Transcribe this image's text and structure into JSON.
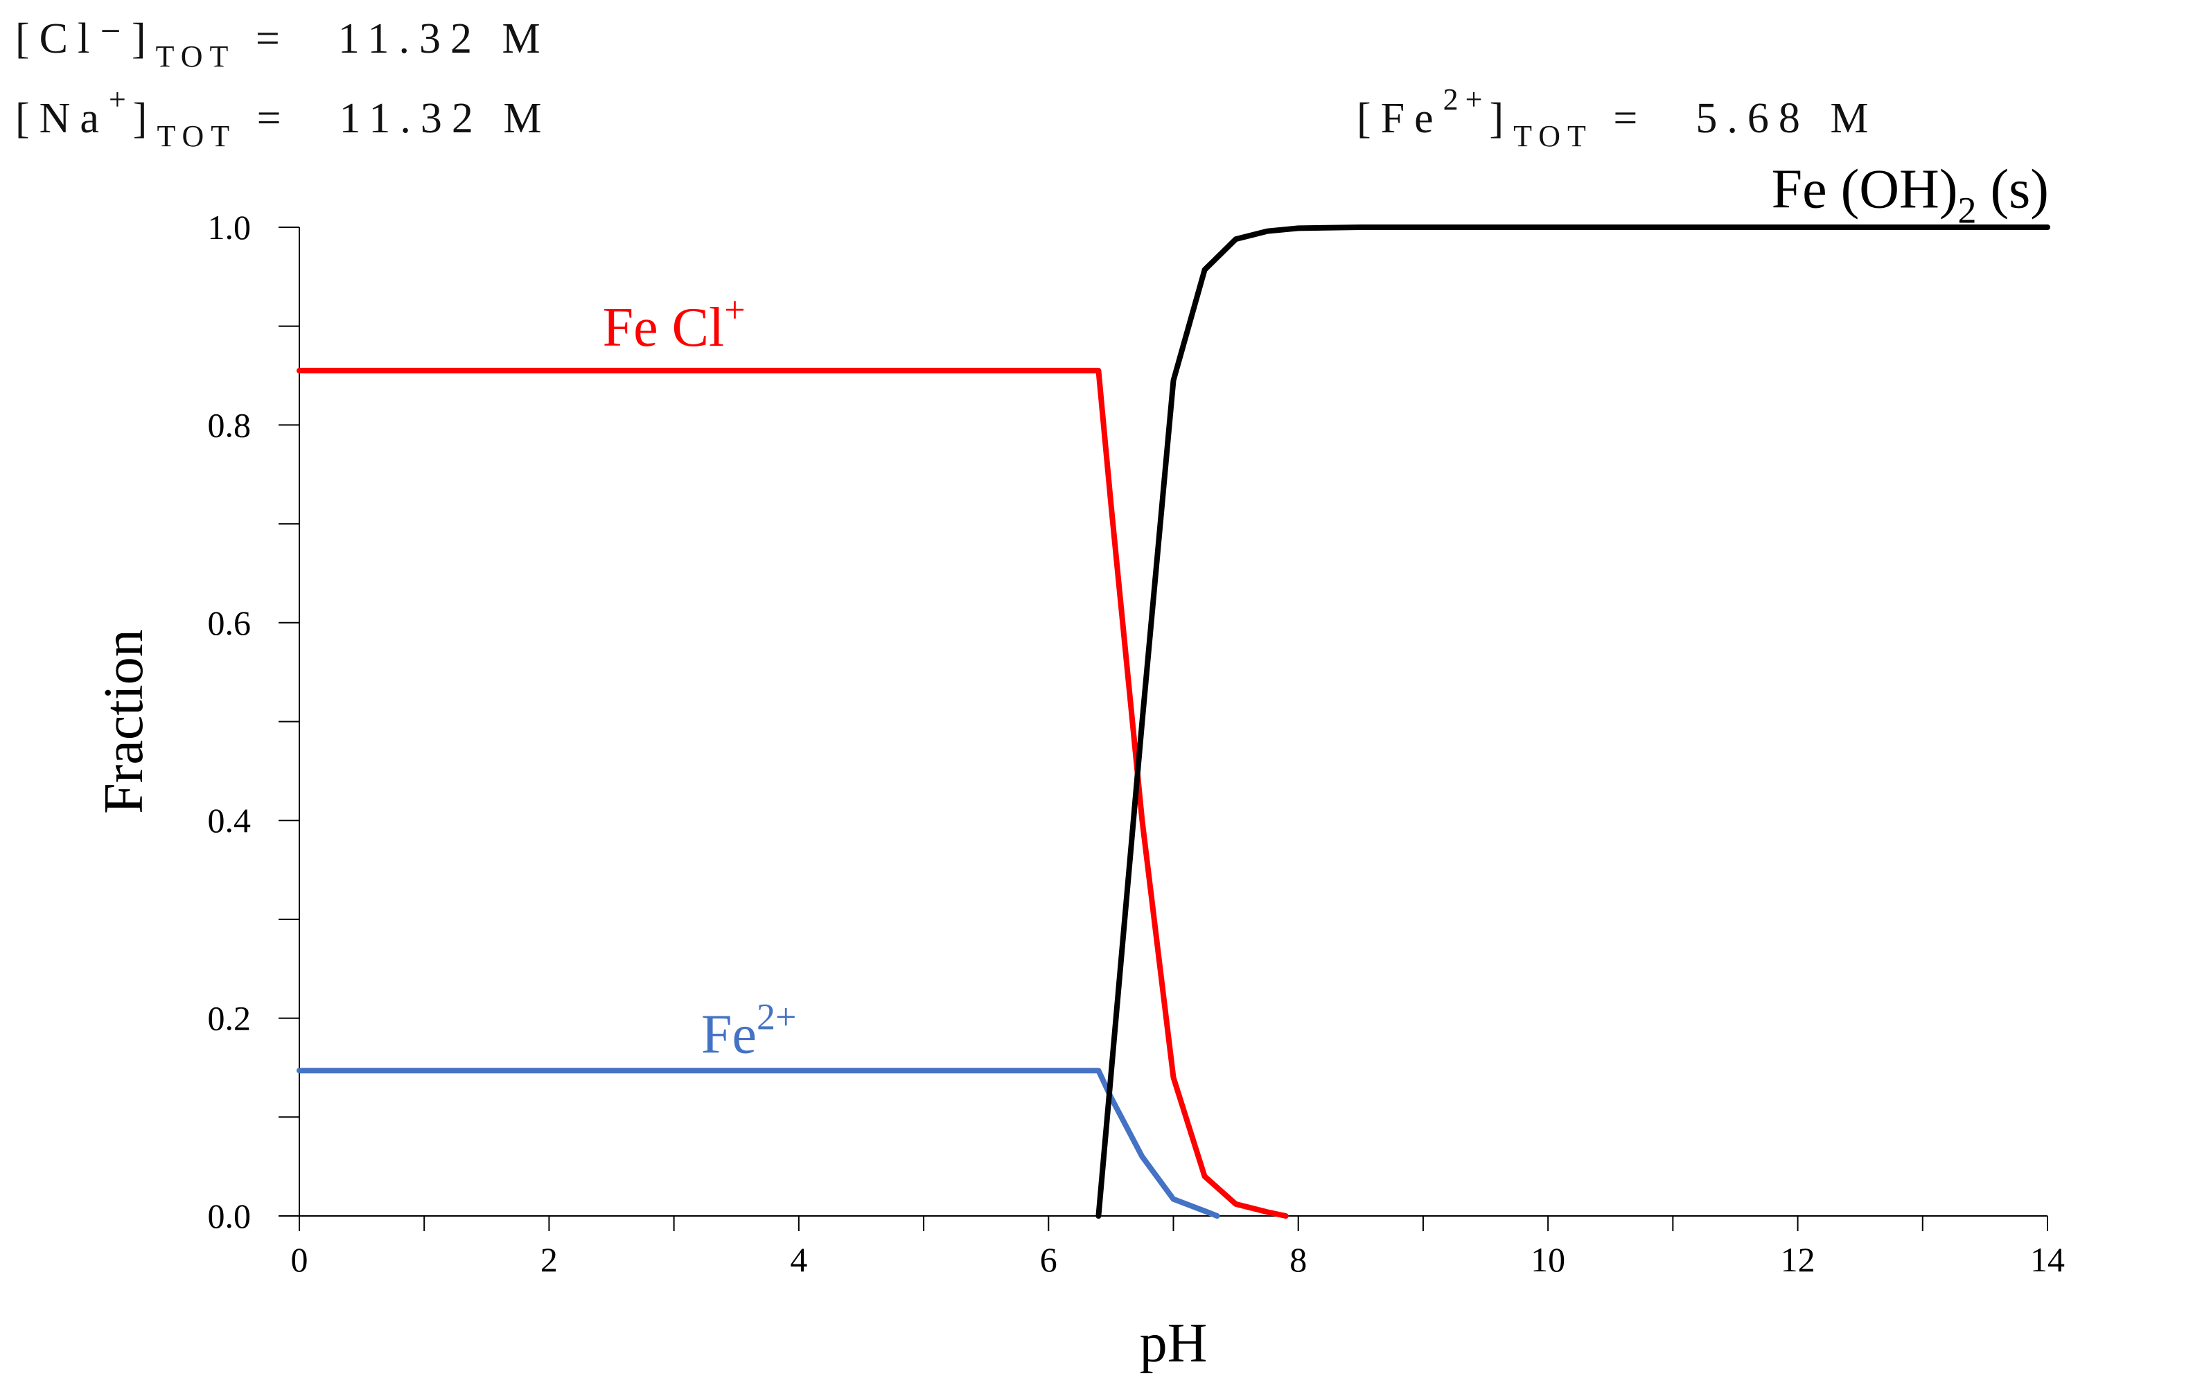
{
  "header": {
    "cl": {
      "species": "[Cl⁻]",
      "sub": "TOT",
      "eq": "=",
      "value": "11.32 M"
    },
    "na": {
      "species": "[Na",
      "charge": "+",
      "close": "]",
      "sub": "TOT",
      "eq": "=",
      "value": "11.32 M"
    },
    "fe": {
      "species": "[Fe",
      "charge": "2+",
      "close": "]",
      "sub": "TOT",
      "eq": "=",
      "value": "5.68 M"
    }
  },
  "chart_data": {
    "type": "line",
    "xlabel": "pH",
    "ylabel": "Fraction",
    "xlim": [
      0,
      14
    ],
    "ylim": [
      0,
      1
    ],
    "xticks": [
      0,
      2,
      4,
      6,
      8,
      10,
      12,
      14
    ],
    "xtick_labels": [
      "0",
      "2",
      "4",
      "6",
      "8",
      "10",
      "12",
      "14"
    ],
    "yticks": [
      0,
      0.2,
      0.4,
      0.6,
      0.8,
      1.0
    ],
    "ytick_labels": [
      "0.0",
      "0.2",
      "0.4",
      "0.6",
      "0.8",
      "1.0"
    ],
    "series": [
      {
        "name": "FeCl+",
        "label_base": "Fe Cl",
        "label_sup": "+",
        "label_sub": "",
        "label_tail": "",
        "label_at": [
          3.0,
          0.88
        ],
        "color": "#ff0000",
        "x": [
          0,
          6.4,
          6.5,
          6.75,
          7.0,
          7.25,
          7.5,
          7.75,
          7.9
        ],
        "y": [
          0.855,
          0.855,
          0.72,
          0.4,
          0.14,
          0.04,
          0.012,
          0.004,
          0.0
        ]
      },
      {
        "name": "Fe2+",
        "label_base": "Fe",
        "label_sup": "2+",
        "label_sub": "",
        "label_tail": "",
        "label_at": [
          3.6,
          0.165
        ],
        "color": "#4472c4",
        "x": [
          0,
          6.4,
          6.5,
          6.75,
          7.0,
          7.25,
          7.35
        ],
        "y": [
          0.147,
          0.147,
          0.12,
          0.06,
          0.017,
          0.005,
          0.0
        ]
      },
      {
        "name": "Fe(OH)2 (s)",
        "label_base": "Fe (OH)",
        "label_sup": "",
        "label_sub": "2",
        "label_tail": " (s)",
        "label_at": [
          12.9,
          1.02
        ],
        "color": "#000000",
        "x": [
          6.4,
          6.75,
          7.0,
          7.25,
          7.5,
          7.75,
          8.0,
          8.5,
          9.0,
          10,
          12,
          14
        ],
        "y": [
          0.0,
          0.5,
          0.845,
          0.957,
          0.988,
          0.996,
          0.999,
          1.0,
          1.0,
          1.0,
          1.0,
          1.0
        ]
      }
    ]
  }
}
